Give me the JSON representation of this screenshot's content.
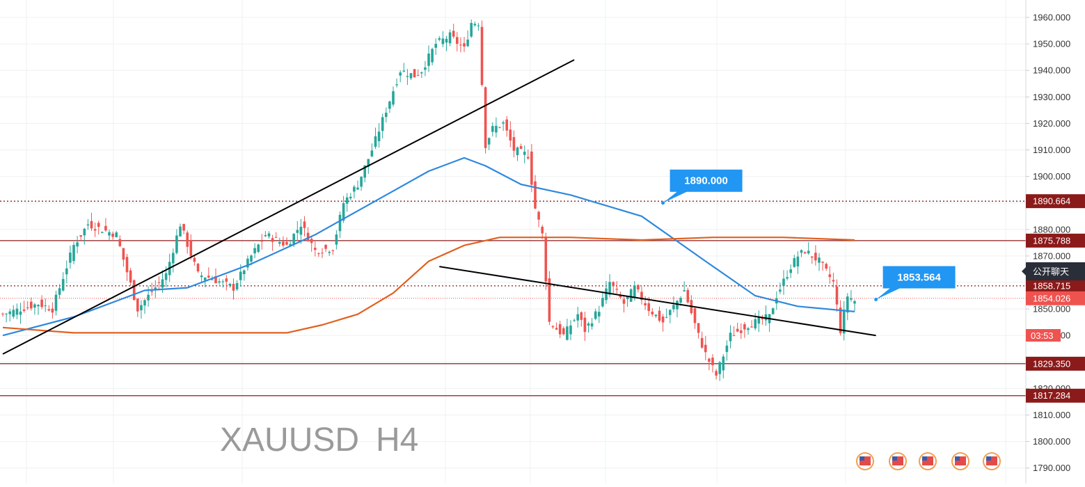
{
  "symbol_label": "XAUUSD",
  "timeframe_label": "H4",
  "chat_button_label": "公开聊天",
  "countdown_label": "03:53",
  "chart_data": {
    "type": "candlestick",
    "title": "",
    "xlabel": "",
    "ylabel": "",
    "ylim": [
      1788,
      1965
    ],
    "y_ticks": [
      {
        "value": 1790,
        "label": "1790.000"
      },
      {
        "value": 1800,
        "label": "1800.000"
      },
      {
        "value": 1810,
        "label": "1810.000"
      },
      {
        "value": 1820,
        "label": "1820.000"
      },
      {
        "value": 1830,
        "label": "1830.000"
      },
      {
        "value": 1840,
        "label": "1840.000"
      },
      {
        "value": 1850,
        "label": "1850.000"
      },
      {
        "value": 1860,
        "label": "1860.000"
      },
      {
        "value": 1870,
        "label": "1870.000"
      },
      {
        "value": 1880,
        "label": "1880.000"
      },
      {
        "value": 1890,
        "label": "1890.000"
      },
      {
        "value": 1900,
        "label": "1900.000"
      },
      {
        "value": 1910,
        "label": "1910.000"
      },
      {
        "value": 1920,
        "label": "1920.000"
      },
      {
        "value": 1930,
        "label": "1930.000"
      },
      {
        "value": 1940,
        "label": "1940.000"
      },
      {
        "value": 1950,
        "label": "1950.000"
      },
      {
        "value": 1960,
        "label": "1960.000"
      }
    ],
    "bar_count": 205,
    "anchors": [
      [
        0,
        1848
      ],
      [
        10,
        1852
      ],
      [
        14,
        1850
      ],
      [
        20,
        1874
      ],
      [
        24,
        1882
      ],
      [
        32,
        1878
      ],
      [
        38,
        1850
      ],
      [
        46,
        1863
      ],
      [
        50,
        1882
      ],
      [
        55,
        1863
      ],
      [
        58,
        1862
      ],
      [
        65,
        1858
      ],
      [
        70,
        1870
      ],
      [
        74,
        1878
      ],
      [
        80,
        1874
      ],
      [
        84,
        1882
      ],
      [
        88,
        1872
      ],
      [
        93,
        1873
      ],
      [
        96,
        1890
      ],
      [
        100,
        1897
      ],
      [
        104,
        1910
      ],
      [
        108,
        1925
      ],
      [
        112,
        1940
      ],
      [
        116,
        1938
      ],
      [
        118,
        1940
      ],
      [
        122,
        1950
      ],
      [
        126,
        1953
      ],
      [
        130,
        1948
      ],
      [
        132,
        1958
      ],
      [
        134,
        1958
      ],
      [
        136,
        1912
      ],
      [
        138,
        1918
      ],
      [
        141,
        1920
      ],
      [
        144,
        1910
      ],
      [
        148,
        1908
      ],
      [
        150,
        1888
      ],
      [
        152,
        1878
      ],
      [
        154,
        1845
      ],
      [
        158,
        1840
      ],
      [
        162,
        1848
      ],
      [
        164,
        1842
      ],
      [
        168,
        1850
      ],
      [
        171,
        1860
      ],
      [
        175,
        1852
      ],
      [
        178,
        1858
      ],
      [
        182,
        1850
      ],
      [
        186,
        1845
      ],
      [
        192,
        1857
      ],
      [
        196,
        1840
      ],
      [
        198,
        1833
      ],
      [
        201,
        1825
      ],
      [
        205,
        1840
      ],
      [
        210,
        1844
      ],
      [
        216,
        1847
      ],
      [
        218,
        1855
      ],
      [
        222,
        1866
      ],
      [
        224,
        1870
      ],
      [
        226,
        1872
      ],
      [
        230,
        1868
      ],
      [
        234,
        1860
      ],
      [
        236,
        1842
      ],
      [
        238,
        1855
      ],
      [
        240,
        1853
      ]
    ],
    "series": [
      {
        "name": "",
        "kind": "moving_average",
        "color": "#2e88dd",
        "points": [
          [
            0,
            1840
          ],
          [
            20,
            1847
          ],
          [
            40,
            1857
          ],
          [
            52,
            1858
          ],
          [
            70,
            1867
          ],
          [
            88,
            1878
          ],
          [
            104,
            1890
          ],
          [
            120,
            1902
          ],
          [
            130,
            1907
          ],
          [
            136,
            1904
          ],
          [
            146,
            1897
          ],
          [
            160,
            1893
          ],
          [
            180,
            1885
          ],
          [
            198,
            1868
          ],
          [
            212,
            1855
          ],
          [
            224,
            1851
          ],
          [
            240,
            1849
          ]
        ]
      },
      {
        "name": "",
        "kind": "moving_average",
        "color": "#e0601e",
        "points": [
          [
            0,
            1843
          ],
          [
            20,
            1841
          ],
          [
            40,
            1841
          ],
          [
            60,
            1841
          ],
          [
            80,
            1841
          ],
          [
            90,
            1844
          ],
          [
            100,
            1848
          ],
          [
            110,
            1856
          ],
          [
            120,
            1868
          ],
          [
            130,
            1874
          ],
          [
            140,
            1877
          ],
          [
            150,
            1877
          ],
          [
            160,
            1877
          ],
          [
            180,
            1876
          ],
          [
            200,
            1877
          ],
          [
            220,
            1877
          ],
          [
            240,
            1876
          ]
        ]
      }
    ],
    "trendlines": [
      {
        "from": [
          0,
          1833
        ],
        "to": [
          161,
          1944
        ],
        "color": "#000000"
      },
      {
        "from": [
          123,
          1866
        ],
        "to": [
          246,
          1840
        ],
        "color": "#000000"
      }
    ],
    "horizontal_levels": [
      {
        "value": 1890.664,
        "label": "1890.664",
        "style": "dotted",
        "color": "#8b1a1a"
      },
      {
        "value": 1875.788,
        "label": "1875.788",
        "style": "solid",
        "color": "#8b1a1a"
      },
      {
        "value": 1858.715,
        "label": "1858.715",
        "style": "dotted",
        "color": "#8b1a1a"
      },
      {
        "value": 1829.35,
        "label": "1829.350",
        "style": "solid",
        "color": "#8b1a1a"
      },
      {
        "value": 1817.284,
        "label": "1817.284",
        "style": "solid",
        "color": "#8b1a1a"
      }
    ],
    "current_price": {
      "value": 1854.026,
      "label": "1854.026",
      "color": "#ef5350"
    },
    "callouts": [
      {
        "label": "1890.000",
        "price": 1890.0,
        "bar": 186
      },
      {
        "label": "1853.564",
        "price": 1853.564,
        "bar": 246
      }
    ],
    "colors": {
      "up": "#26a69a",
      "down": "#ef5350",
      "level": "#8b1a1a",
      "callout": "#2196f3",
      "grid": "#eef0f3",
      "axis_text": "#333333",
      "watermark": "#9a9a9a"
    }
  }
}
